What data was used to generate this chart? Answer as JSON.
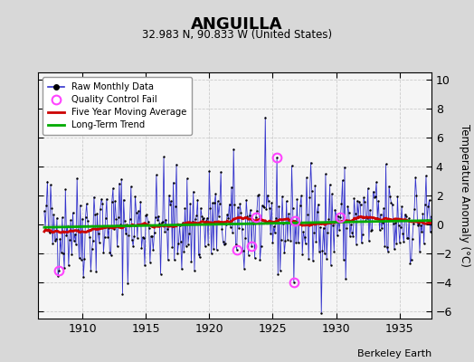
{
  "title": "ANGUILLA",
  "subtitle": "32.983 N, 90.833 W (United States)",
  "ylabel": "Temperature Anomaly (°C)",
  "credit": "Berkeley Earth",
  "xlim": [
    1906.5,
    1937.5
  ],
  "ylim": [
    -6.5,
    10.5
  ],
  "yticks": [
    -6,
    -4,
    -2,
    0,
    2,
    4,
    6,
    8,
    10
  ],
  "xticks": [
    1910,
    1915,
    1920,
    1925,
    1930,
    1935
  ],
  "bg_color": "#d8d8d8",
  "plot_bg_color": "#f5f5f5",
  "raw_color": "#3333cc",
  "ma_color": "#cc0000",
  "trend_color": "#00aa00",
  "qc_color": "#ff44ff",
  "seed": 42,
  "n_months": 372,
  "start_year": 1907.0,
  "qc_fail_indices": [
    14,
    182,
    196,
    200,
    220,
    236,
    237,
    280
  ]
}
